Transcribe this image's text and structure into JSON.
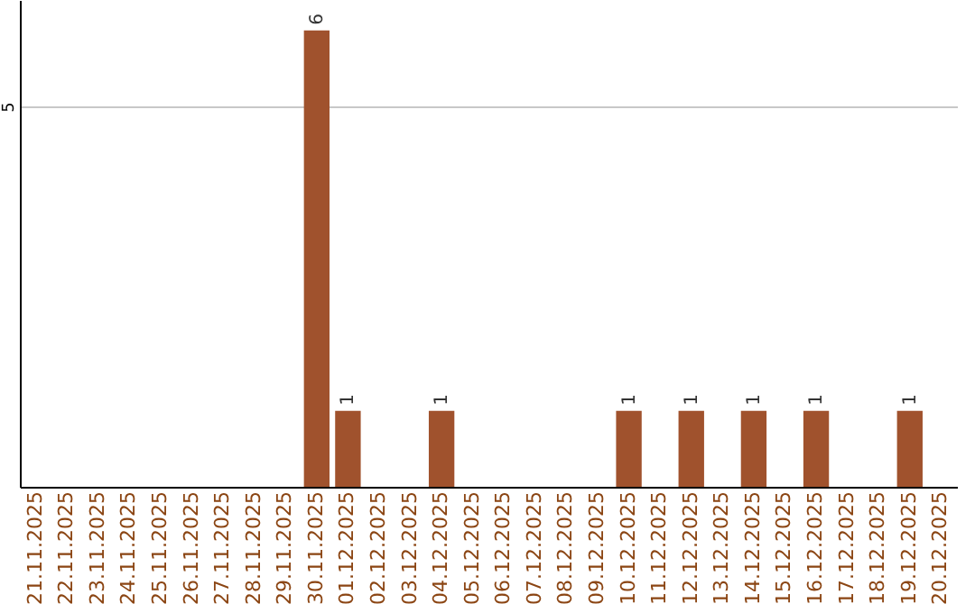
{
  "chart_data": {
    "type": "bar",
    "categories": [
      "21.11.2025",
      "22.11.2025",
      "23.11.2025",
      "24.11.2025",
      "25.11.2025",
      "26.11.2025",
      "27.11.2025",
      "28.11.2025",
      "29.11.2025",
      "30.11.2025",
      "01.12.2025",
      "02.12.2025",
      "03.12.2025",
      "04.12.2025",
      "05.12.2025",
      "06.12.2025",
      "07.12.2025",
      "08.12.2025",
      "09.12.2025",
      "10.12.2025",
      "11.12.2025",
      "12.12.2025",
      "13.12.2025",
      "14.12.2025",
      "15.12.2025",
      "16.12.2025",
      "17.12.2025",
      "18.12.2025",
      "19.12.2025",
      "20.12.2025"
    ],
    "values": [
      0,
      0,
      0,
      0,
      0,
      0,
      0,
      0,
      0,
      6,
      1,
      0,
      0,
      1,
      0,
      0,
      0,
      0,
      0,
      1,
      0,
      1,
      0,
      1,
      0,
      1,
      0,
      0,
      1,
      0
    ],
    "color": "#a0522d",
    "value_labels": [
      null,
      null,
      null,
      null,
      null,
      null,
      null,
      null,
      null,
      "6",
      "1",
      null,
      null,
      "1",
      null,
      null,
      null,
      null,
      null,
      "1",
      null,
      "1",
      null,
      "1",
      null,
      "1",
      null,
      null,
      "1",
      null
    ],
    "ylim": [
      0,
      6.4
    ],
    "yticks": [
      5
    ],
    "grid": "y"
  }
}
